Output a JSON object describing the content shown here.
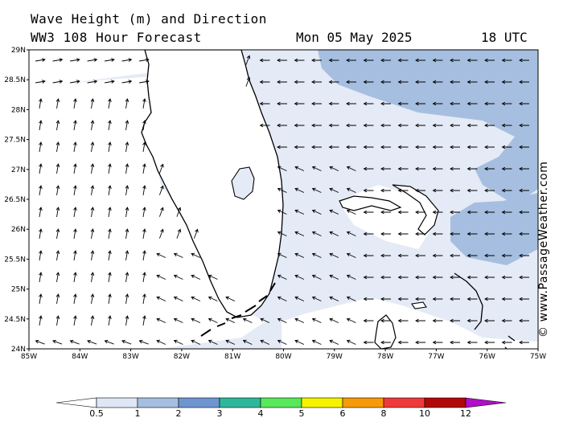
{
  "header": {
    "title_line1": "Wave Height (m) and Direction",
    "title_line2": "WW3 108 Hour Forecast",
    "date": "Mon 05 May 2025",
    "time": "18 UTC"
  },
  "credit": "© www.PassageWeather.com",
  "axes": {
    "lat_labels": [
      "29N",
      "28.5N",
      "28N",
      "27.5N",
      "27N",
      "26.5N",
      "26N",
      "25.5N",
      "25N",
      "24.5N",
      "24N"
    ],
    "lon_labels": [
      "85W",
      "84W",
      "83W",
      "82W",
      "81W",
      "80W",
      "79W",
      "78W",
      "77W",
      "76W",
      "75W"
    ],
    "lat_range": [
      24,
      29
    ],
    "lon_range": [
      -85,
      -75
    ]
  },
  "legend": {
    "labels": [
      "0.5",
      "1",
      "2",
      "3",
      "4",
      "5",
      "6",
      "8",
      "10",
      "12"
    ],
    "colors": [
      "#ffffff",
      "#dfe6f5",
      "#a6bfe0",
      "#6f95d0",
      "#2eb89a",
      "#58e85a",
      "#f6f200",
      "#f59a08",
      "#ee3a3a",
      "#b00808",
      "#b010c8"
    ]
  },
  "colors": {
    "land": "#ffffff",
    "sea_light": "#e4eaf6",
    "sea_medium": "#a6bfe0",
    "coast": "#000000"
  }
}
